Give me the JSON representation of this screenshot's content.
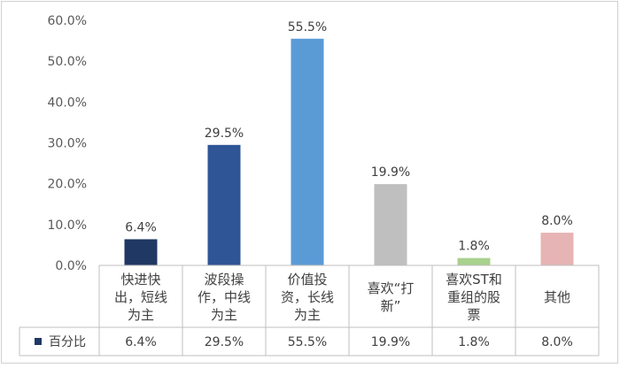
{
  "chart_data": {
    "type": "bar",
    "categories": [
      [
        "快进快",
        "出，短线",
        "为主"
      ],
      [
        "波段操",
        "作，中线",
        "为主"
      ],
      [
        "价值投",
        "资，长线",
        "为主"
      ],
      [
        "喜欢“打",
        "新”"
      ],
      [
        "喜欢ST和",
        "重组的股",
        "票"
      ],
      [
        "其他"
      ]
    ],
    "values": [
      6.4,
      29.5,
      55.5,
      19.9,
      1.8,
      8.0
    ],
    "bar_colors": [
      "#1f3864",
      "#2f5597",
      "#5b9bd5",
      "#bfbfbf",
      "#a9d18e",
      "#e6b4b4"
    ],
    "data_labels": [
      "6.4%",
      "29.5%",
      "55.5%",
      "19.9%",
      "1.8%",
      "8.0%"
    ],
    "y_ticks": [
      "0.0%",
      "10.0%",
      "20.0%",
      "30.0%",
      "40.0%",
      "50.0%",
      "60.0%"
    ],
    "ylim": [
      0,
      60
    ],
    "grid": false,
    "data_table": {
      "series_name": "百分比",
      "legend_color": "#1f3864",
      "values": [
        "6.4%",
        "29.5%",
        "55.5%",
        "19.9%",
        "1.8%",
        "8.0%"
      ]
    }
  }
}
